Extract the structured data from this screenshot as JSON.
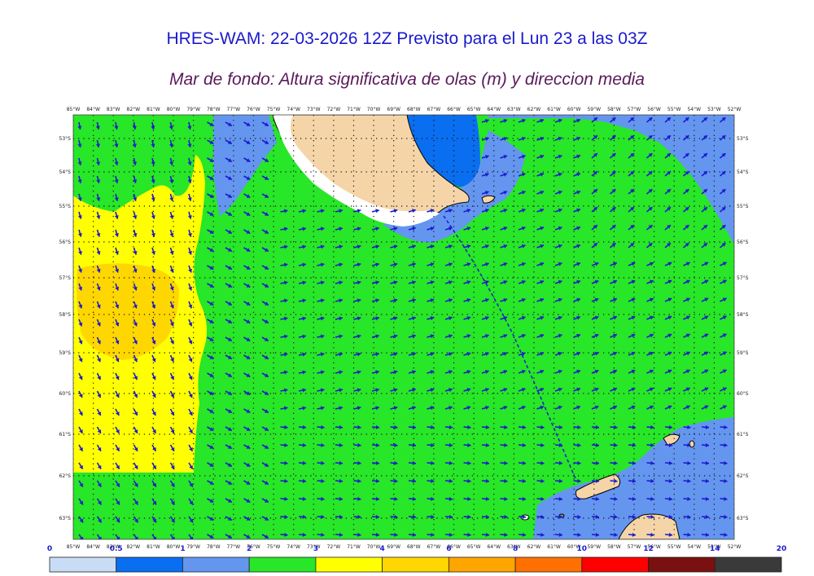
{
  "title": "HRES-WAM: 22-03-2026 12Z Previsto para el Lun 23 a las 03Z",
  "subtitle": "Mar de fondo: Altura significativa de olas (m) y direccion media",
  "lon_labels": [
    "85°W",
    "84°W",
    "83°W",
    "82°W",
    "81°W",
    "80°W",
    "79°W",
    "78°W",
    "77°W",
    "76°W",
    "75°W",
    "74°W",
    "73°W",
    "72°W",
    "71°W",
    "70°W",
    "69°W",
    "68°W",
    "67°W",
    "66°W",
    "65°W",
    "64°W",
    "63°W",
    "62°W",
    "61°W",
    "60°W",
    "59°W",
    "58°W",
    "57°W",
    "56°W",
    "55°W",
    "54°W",
    "53°W",
    "52°W"
  ],
  "lat_labels": [
    "53°S",
    "54°S",
    "55°S",
    "56°S",
    "57°S",
    "58°S",
    "59°S",
    "60°S",
    "61°S",
    "62°S",
    "63°S"
  ],
  "colorbar": {
    "colors": [
      "#c8dcf5",
      "#0a6ef0",
      "#6496f0",
      "#28e628",
      "#ffff00",
      "#ffd700",
      "#ffa500",
      "#ff7000",
      "#ff0000",
      "#7a1010",
      "#3a3a3a"
    ],
    "ticks": [
      "0",
      "0.5",
      "1",
      "2",
      "3",
      "4",
      "6",
      "8",
      "10",
      "12",
      "14",
      "20"
    ]
  },
  "palette": {
    "land": "#f5d5a8",
    "ice": "#ffffff",
    "arrow": "#1a1acc",
    "dotted_grid": "#111111"
  }
}
